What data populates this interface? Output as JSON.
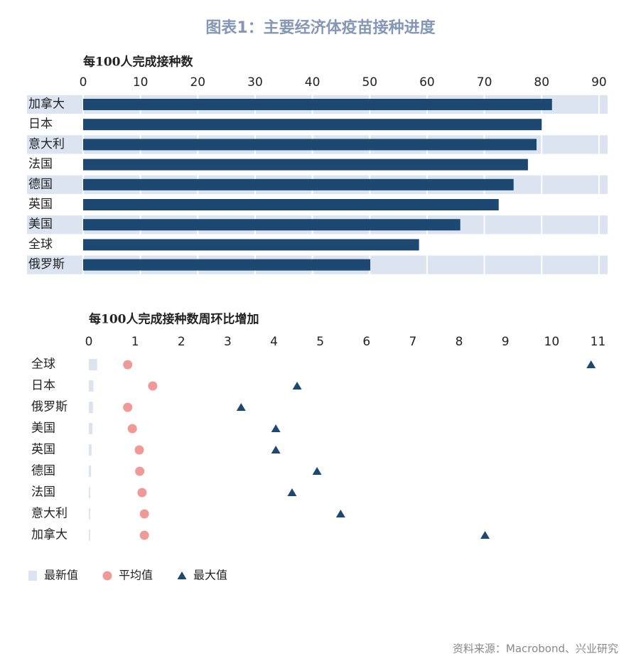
{
  "title": "图表1：主要经济体疫苗接种进度",
  "source": "资料来源：Macrobond、兴业研究",
  "chart_data": [
    {
      "type": "hbar",
      "x_label": "每100人完成接种数",
      "categories": [
        "加拿大",
        "日本",
        "意大利",
        "法国",
        "德国",
        "英国",
        "美国",
        "全球",
        "俄罗斯"
      ],
      "values": [
        81.8,
        80.0,
        79.1,
        77.6,
        75.1,
        72.5,
        65.8,
        58.6,
        50.1
      ],
      "color": "#1d4872",
      "band_color": "#dbe4f0",
      "xlim": [
        0,
        91.5
      ],
      "xticks": [
        0,
        10,
        20,
        30,
        40,
        50,
        60,
        70,
        80,
        90
      ],
      "grid": true
    },
    {
      "type": "dot",
      "x_label": "每100人完成接种数周环比增加",
      "categories": [
        "全球",
        "日本",
        "俄罗斯",
        "美国",
        "英国",
        "德国",
        "法国",
        "意大利",
        "加拿大"
      ],
      "series": [
        {
          "name": "最新值",
          "color": "#dbe4f0",
          "marker": "bar",
          "values": [
            0.18,
            0.1,
            0.09,
            0.08,
            0.06,
            0.05,
            0.03,
            0.03,
            0.03
          ]
        },
        {
          "name": "平均值",
          "color": "#f09a98",
          "marker": "circle",
          "values": [
            0.84,
            1.38,
            0.84,
            0.94,
            1.09,
            1.1,
            1.15,
            1.2,
            1.2
          ]
        },
        {
          "name": "最大值",
          "color": "#1d4872",
          "marker": "triangle",
          "values": [
            10.85,
            4.5,
            3.29,
            4.04,
            4.04,
            4.93,
            4.39,
            5.44,
            8.56
          ]
        }
      ],
      "xlim": [
        0,
        11.1
      ],
      "xticks": [
        0,
        1,
        2,
        3,
        4,
        5,
        6,
        7,
        8,
        9,
        10,
        11
      ],
      "grid": false,
      "legend": "bottom-left"
    }
  ]
}
